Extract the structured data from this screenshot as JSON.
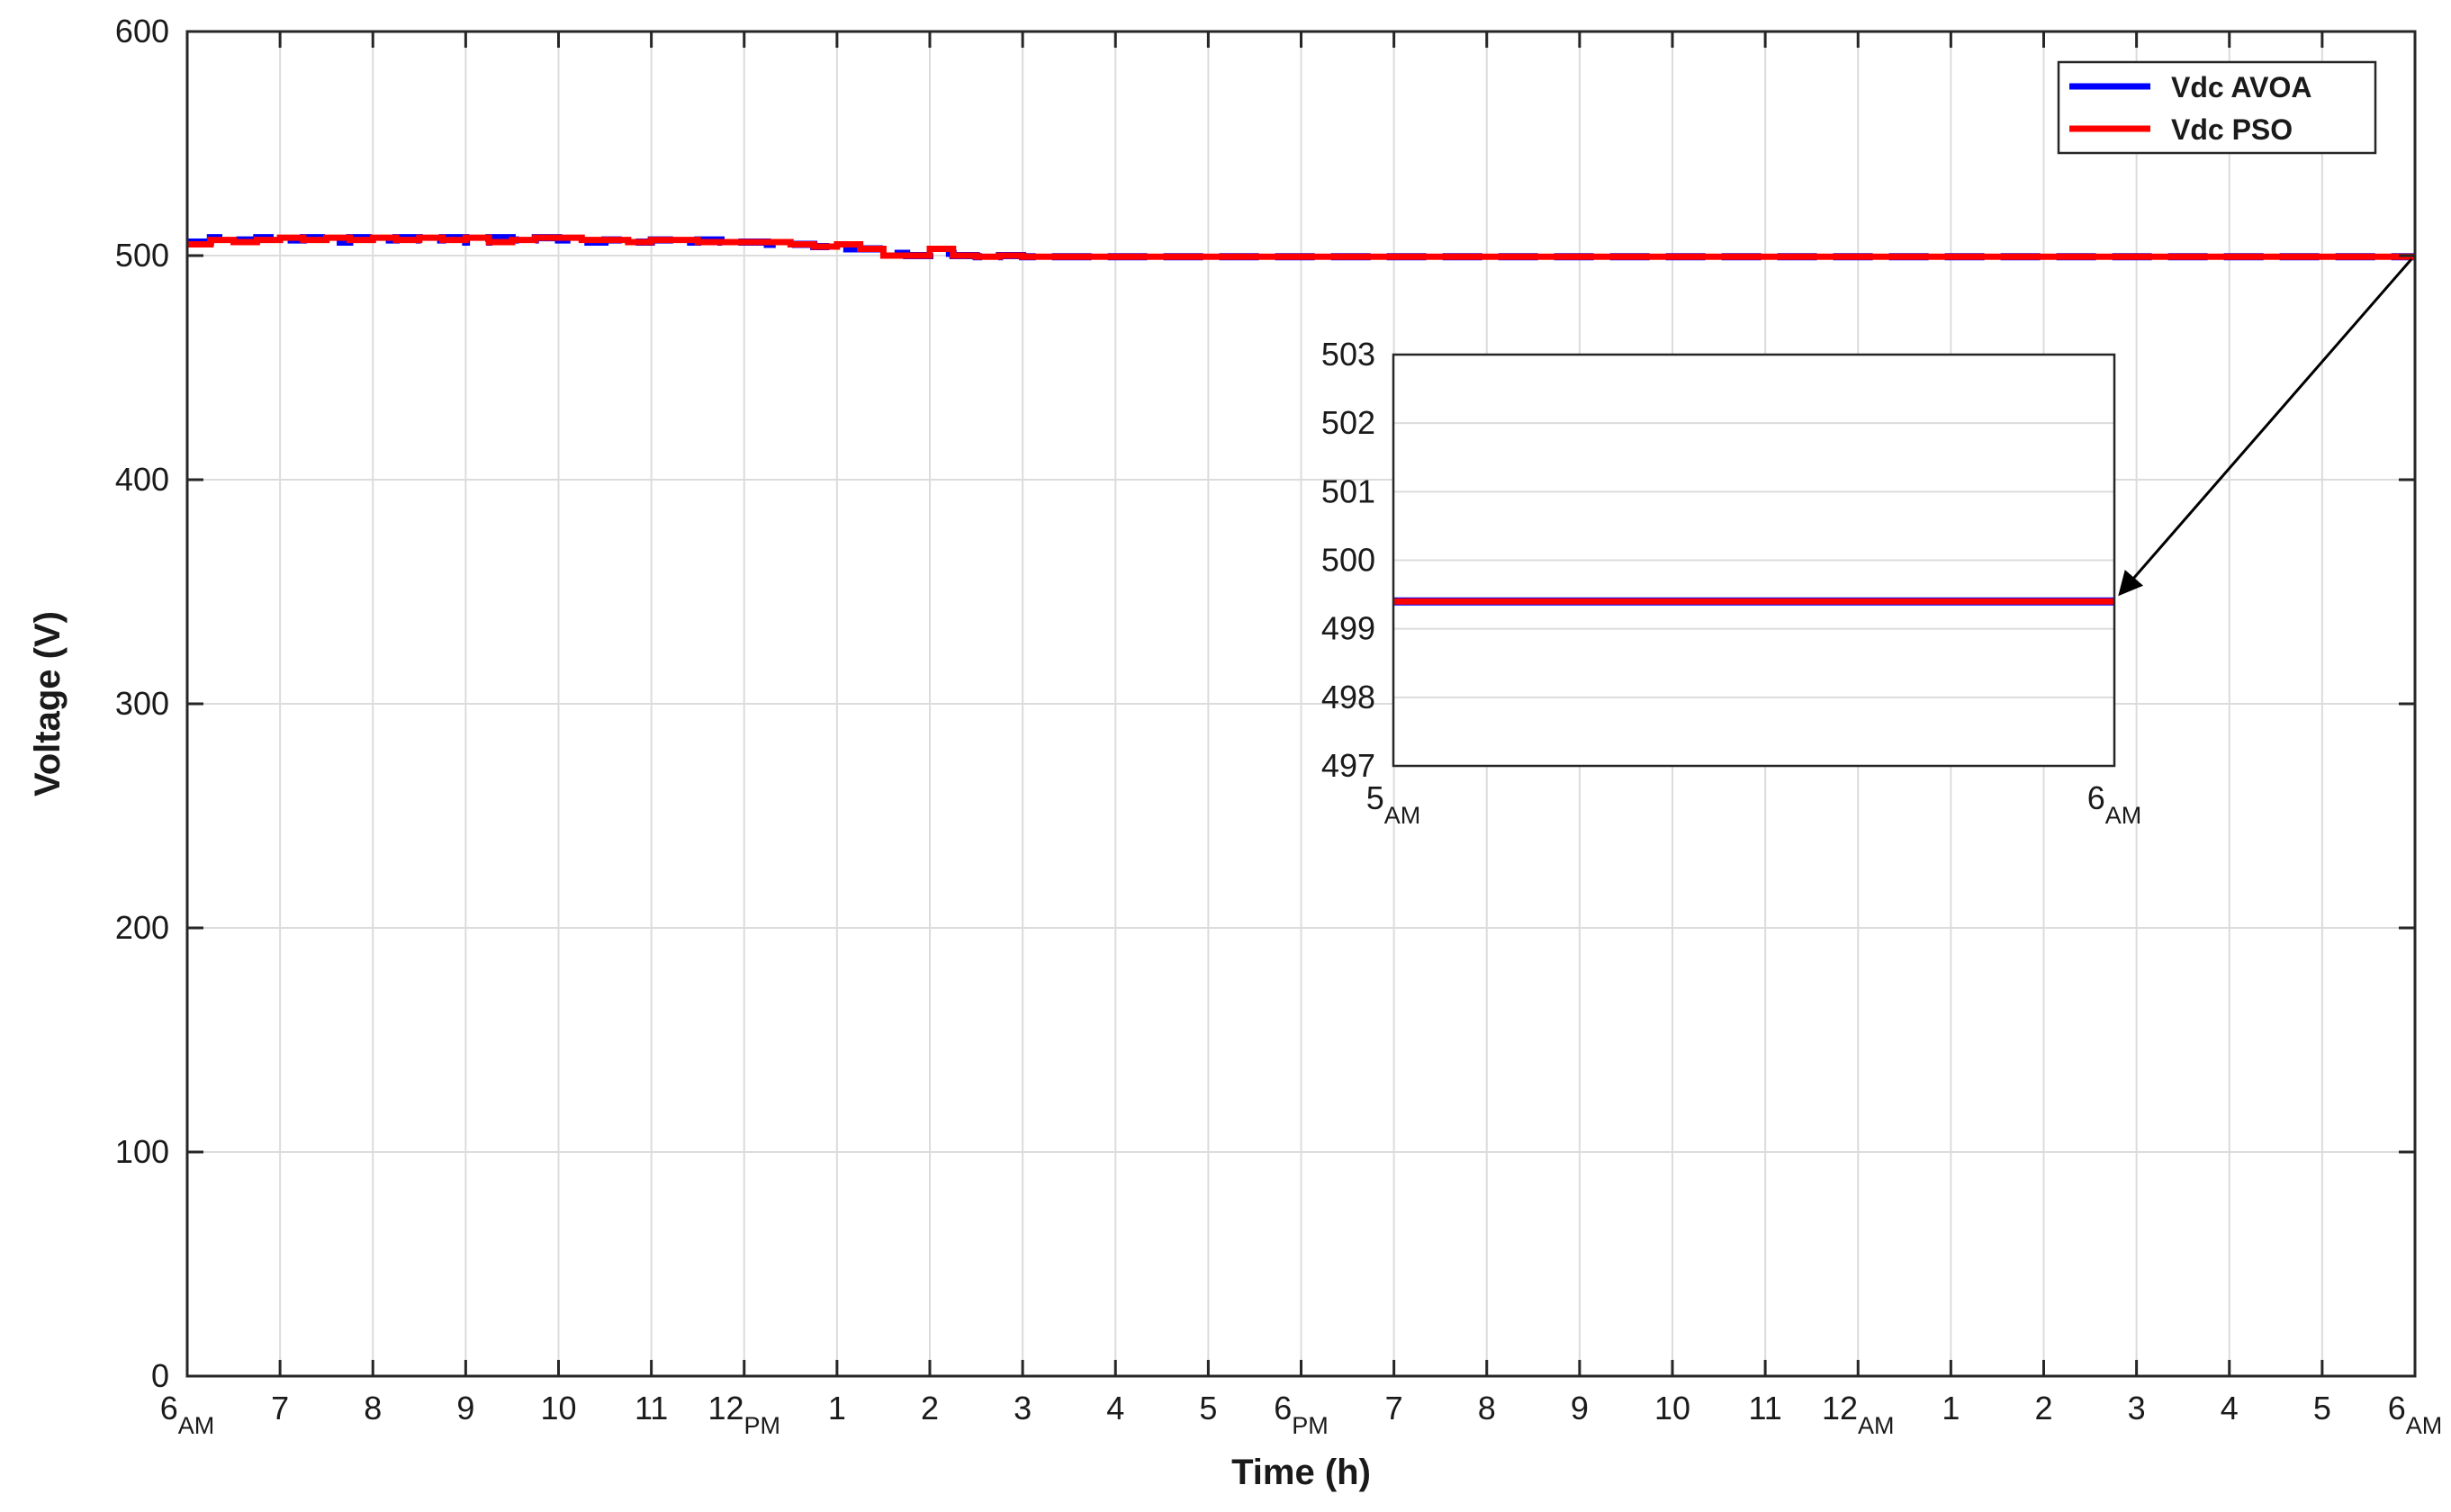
{
  "chart_data": {
    "type": "line",
    "xlabel": "Time (h)",
    "ylabel": "Voltage (V)",
    "xlim": [
      0,
      24
    ],
    "ylim": [
      0,
      600
    ],
    "y_ticks": [
      0,
      100,
      200,
      300,
      400,
      500,
      600
    ],
    "x_ticks": [
      {
        "x": 0,
        "label": "6",
        "sub": "AM"
      },
      {
        "x": 1,
        "label": "7",
        "sub": ""
      },
      {
        "x": 2,
        "label": "8",
        "sub": ""
      },
      {
        "x": 3,
        "label": "9",
        "sub": ""
      },
      {
        "x": 4,
        "label": "10",
        "sub": ""
      },
      {
        "x": 5,
        "label": "11",
        "sub": ""
      },
      {
        "x": 6,
        "label": "12",
        "sub": "PM"
      },
      {
        "x": 7,
        "label": "1",
        "sub": ""
      },
      {
        "x": 8,
        "label": "2",
        "sub": ""
      },
      {
        "x": 9,
        "label": "3",
        "sub": ""
      },
      {
        "x": 10,
        "label": "4",
        "sub": ""
      },
      {
        "x": 11,
        "label": "5",
        "sub": ""
      },
      {
        "x": 12,
        "label": "6",
        "sub": "PM"
      },
      {
        "x": 13,
        "label": "7",
        "sub": ""
      },
      {
        "x": 14,
        "label": "8",
        "sub": ""
      },
      {
        "x": 15,
        "label": "9",
        "sub": ""
      },
      {
        "x": 16,
        "label": "10",
        "sub": ""
      },
      {
        "x": 17,
        "label": "11",
        "sub": ""
      },
      {
        "x": 18,
        "label": "12",
        "sub": "AM"
      },
      {
        "x": 19,
        "label": "1",
        "sub": ""
      },
      {
        "x": 20,
        "label": "2",
        "sub": ""
      },
      {
        "x": 21,
        "label": "3",
        "sub": ""
      },
      {
        "x": 22,
        "label": "4",
        "sub": ""
      },
      {
        "x": 23,
        "label": "5",
        "sub": ""
      },
      {
        "x": 24,
        "label": "6",
        "sub": "AM"
      }
    ],
    "grid": true,
    "legend_position": "top-right",
    "series": [
      {
        "name": "Vdc AVOA",
        "color": "#0000ff",
        "x": [
          0,
          0.25,
          0.5,
          0.75,
          1.0,
          1.25,
          1.5,
          1.75,
          2.0,
          2.25,
          2.5,
          2.75,
          3.0,
          3.25,
          3.5,
          3.75,
          4.0,
          4.25,
          4.5,
          4.75,
          5.0,
          5.25,
          5.5,
          5.75,
          6.0,
          6.25,
          6.5,
          6.75,
          7.0,
          7.25,
          7.5,
          7.75,
          8.0,
          8.25,
          8.5,
          8.75,
          9.0,
          9.25,
          9.5,
          24
        ],
        "y": [
          506,
          508,
          507,
          508,
          507,
          508,
          506,
          508,
          507,
          508,
          507,
          508,
          506,
          508,
          507,
          508,
          507,
          506,
          507,
          506,
          507,
          506,
          507,
          506,
          506,
          505,
          505,
          504,
          503,
          503,
          501,
          500,
          501,
          500,
          499.5,
          500,
          499.5,
          499.5,
          499.5,
          499.5
        ]
      },
      {
        "name": "Vdc PSO",
        "color": "#ff0000",
        "x": [
          0,
          0.25,
          0.5,
          0.75,
          1.0,
          1.25,
          1.5,
          1.75,
          2.0,
          2.25,
          2.5,
          2.75,
          3.0,
          3.25,
          3.5,
          3.75,
          4.0,
          4.25,
          4.5,
          4.75,
          5.0,
          5.25,
          5.5,
          5.75,
          6.0,
          6.25,
          6.5,
          6.75,
          7.0,
          7.25,
          7.5,
          7.75,
          8.0,
          8.25,
          8.5,
          8.75,
          9.0,
          9.25,
          9.5,
          24
        ],
        "y": [
          505,
          507,
          506,
          507,
          508,
          507,
          508,
          507,
          508,
          507,
          508,
          507,
          508,
          506,
          507,
          508,
          508,
          507,
          507,
          506,
          507,
          507,
          506,
          506,
          506,
          506,
          505,
          504,
          505,
          503,
          500,
          500,
          503,
          500,
          499.5,
          500,
          499.5,
          499.5,
          499.5,
          499.5
        ]
      }
    ],
    "inset": {
      "xlim": [
        0,
        1
      ],
      "ylim": [
        497,
        503
      ],
      "y_ticks": [
        497,
        498,
        499,
        500,
        501,
        502,
        503
      ],
      "x_ticks": [
        {
          "x": 0,
          "label": "5",
          "sub": "AM"
        },
        {
          "x": 1,
          "label": "6",
          "sub": "AM"
        }
      ],
      "series_y": 499.4,
      "annotation": "arrow from main plot end (6 AM, 500 V) to inset"
    }
  }
}
